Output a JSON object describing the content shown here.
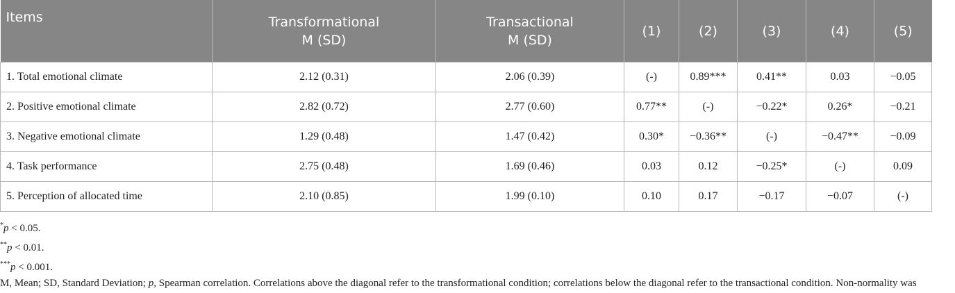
{
  "table": {
    "header": [
      "Items",
      "Transformational\nM (SD)",
      "Transactional\nM (SD)",
      "(1)",
      "(2)",
      "(3)",
      "(4)",
      "(5)"
    ],
    "rows": [
      [
        "1. Total emotional climate",
        "2.12 (0.31)",
        "2.06 (0.39)",
        "(-)",
        "0.89***",
        "0.41**",
        "0.03",
        "−0.05"
      ],
      [
        "2. Positive emotional climate",
        "2.82 (0.72)",
        "2.77 (0.60)",
        "0.77**",
        "(-)",
        "−0.22*",
        "0.26*",
        "−0.21"
      ],
      [
        "3. Negative emotional climate",
        "1.29 (0.48)",
        "1.47 (0.42)",
        "0.30*",
        "−0.36**",
        "(-)",
        "−0.47**",
        "−0.09"
      ],
      [
        "4. Task performance",
        "2.75 (0.48)",
        "1.69 (0.46)",
        "0.03",
        "0.12",
        "−0.25*",
        "(-)",
        "0.09"
      ],
      [
        "5. Perception of allocated time",
        "2.10 (0.85)",
        "1.99 (0.10)",
        "0.10",
        "0.17",
        "−0.17",
        "−0.07",
        "(-)"
      ]
    ]
  },
  "notes": [
    {
      "mark": "*",
      "var": "p",
      "text": " < 0.05."
    },
    {
      "mark": "**",
      "var": "p",
      "text": " < 0.01."
    },
    {
      "mark": "***",
      "var": "p",
      "text": " < 0.001."
    }
  ],
  "caption": [
    "M, Mean; SD, Standard Deviation; ",
    "p",
    ", Spearman correlation. Correlations above the diagonal refer to the transformational condition; correlations below the diagonal refer to the transactional condition. Non-normality was assessed via Kolmogorov-Smirnov and Shapiro-Wilk tests (reported in the Methods), therefore non-parametric statistics were used."
  ]
}
